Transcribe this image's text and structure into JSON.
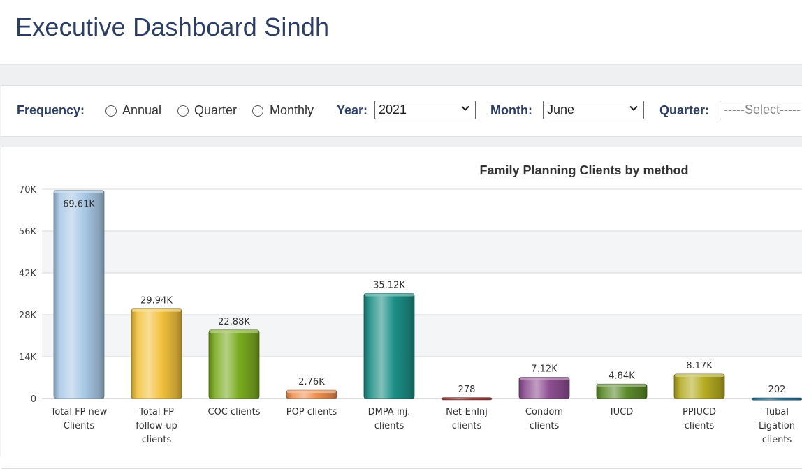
{
  "header": {
    "title": "Executive Dashboard Sindh"
  },
  "filters": {
    "frequency_label": "Frequency:",
    "frequency_options": [
      "Annual",
      "Quarter",
      "Monthly"
    ],
    "year_label": "Year:",
    "year_value": "2021",
    "month_label": "Month:",
    "month_value": "June",
    "quarter_label": "Quarter:",
    "quarter_value": "-----Select-----"
  },
  "chart_data": {
    "type": "bar",
    "title": "Family Planning Clients by method",
    "ylim": [
      0,
      70000
    ],
    "yticks": [
      "0",
      "14K",
      "28K",
      "42K",
      "56K",
      "70K"
    ],
    "categories": [
      "Total FP new Clients",
      "Total FP follow-up clients",
      "COC clients",
      "POP clients",
      "DMPA inj. clients",
      "Net-EnInj clients",
      "Condom clients",
      "IUCD",
      "PPIUCD clients",
      "Tubal Ligation clients"
    ],
    "values": [
      69610,
      29940,
      22880,
      2760,
      35120,
      278,
      7120,
      4840,
      8170,
      202
    ],
    "data_labels": [
      "69.61K",
      "29.94K",
      "22.88K",
      "2.76K",
      "35.12K",
      "278",
      "7.12K",
      "4.84K",
      "8.17K",
      "202"
    ],
    "colors": [
      "#a9c9e6",
      "#f2c23c",
      "#7aab1f",
      "#ef9050",
      "#1c8f86",
      "#b24a4a",
      "#8e4f92",
      "#5c8a2a",
      "#b5ac21",
      "#2c7da2"
    ],
    "grid": true
  }
}
